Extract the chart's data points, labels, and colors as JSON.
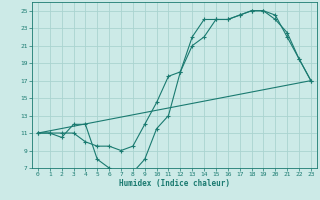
{
  "title": "",
  "xlabel": "Humidex (Indice chaleur)",
  "ylabel": "",
  "bg_color": "#cceae7",
  "grid_color": "#aad4d0",
  "line_color": "#1a7a70",
  "xlim": [
    -0.5,
    23.5
  ],
  "ylim": [
    7,
    26
  ],
  "xticks": [
    0,
    1,
    2,
    3,
    4,
    5,
    6,
    7,
    8,
    9,
    10,
    11,
    12,
    13,
    14,
    15,
    16,
    17,
    18,
    19,
    20,
    21,
    22,
    23
  ],
  "yticks": [
    7,
    9,
    11,
    13,
    15,
    17,
    19,
    21,
    23,
    25
  ],
  "line1_x": [
    0,
    1,
    2,
    3,
    4,
    5,
    6,
    7,
    8,
    9,
    10,
    11,
    12,
    13,
    14,
    15,
    16,
    17,
    18,
    19,
    20,
    21,
    22,
    23
  ],
  "line1_y": [
    11,
    11,
    11,
    11,
    10,
    9.5,
    9.5,
    9,
    9.5,
    12,
    14.5,
    17.5,
    18,
    21,
    22,
    24,
    24,
    24.5,
    25,
    25,
    24,
    22.5,
    19.5,
    17
  ],
  "line2_x": [
    0,
    1,
    2,
    3,
    4,
    5,
    6,
    7,
    8,
    9,
    10,
    11,
    12,
    13,
    14,
    15,
    16,
    17,
    18,
    19,
    20,
    21,
    22,
    23
  ],
  "line2_y": [
    11,
    11,
    10.5,
    12,
    12,
    8,
    7,
    6.5,
    6.5,
    8,
    11.5,
    13,
    18,
    22,
    24,
    24,
    24,
    24.5,
    25,
    25,
    24.5,
    22,
    19.5,
    17
  ],
  "line3_x": [
    0,
    23
  ],
  "line3_y": [
    11,
    17
  ]
}
